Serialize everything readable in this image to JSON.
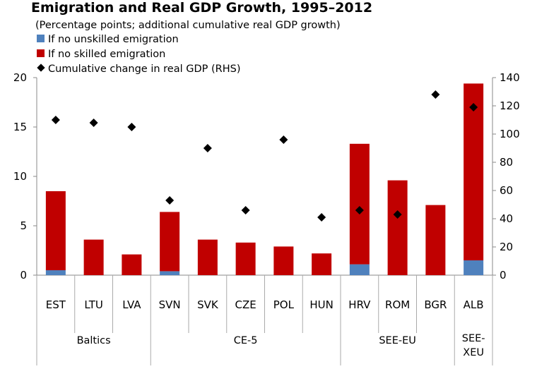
{
  "chart_data": {
    "type": "bar",
    "title": "Emigration and Real GDP Growth, 1995–2012",
    "subtitle": "(Percentage points; additional cumulative  real GDP growth)",
    "categories": [
      "EST",
      "LTU",
      "LVA",
      "SVN",
      "SVK",
      "CZE",
      "POL",
      "HUN",
      "HRV",
      "ROM",
      "BGR",
      "ALB"
    ],
    "groups": [
      {
        "label": "Baltics",
        "lines": [
          "Baltics"
        ],
        "start": 0,
        "end": 2
      },
      {
        "label": "CE-5",
        "lines": [
          "CE-5"
        ],
        "start": 3,
        "end": 7
      },
      {
        "label": "SEE-EU",
        "lines": [
          "SEE-EU"
        ],
        "start": 8,
        "end": 10
      },
      {
        "label": "SEE-XEU",
        "lines": [
          "SEE-",
          "XEU"
        ],
        "start": 11,
        "end": 11
      }
    ],
    "series": [
      {
        "name": "If no unskilled emigration",
        "kind": "bar",
        "axis": "left",
        "color": "#4F81BD",
        "values": [
          0.5,
          0.0,
          0.0,
          0.4,
          0.0,
          0.0,
          0.0,
          0.0,
          1.1,
          0.0,
          0.0,
          1.5
        ]
      },
      {
        "name": "If no skilled emigration",
        "kind": "bar",
        "axis": "left",
        "color": "#C00000",
        "values": [
          8.0,
          3.6,
          2.1,
          6.0,
          3.6,
          3.3,
          2.9,
          2.2,
          12.2,
          9.6,
          7.1,
          17.9
        ]
      },
      {
        "name": "Cumulative  change in real GDP (RHS)",
        "kind": "marker",
        "axis": "right",
        "color": "#000000",
        "values": [
          110,
          108,
          105,
          53,
          90,
          46,
          96,
          41,
          46,
          43,
          128,
          119
        ]
      }
    ],
    "ylim": [
      0,
      20
    ],
    "yticks": [
      0,
      5,
      10,
      15,
      20
    ],
    "y2lim": [
      0,
      140
    ],
    "y2ticks": [
      0,
      20,
      40,
      60,
      80,
      100,
      120,
      140
    ],
    "xlabel": "",
    "ylabel": "",
    "legend_position": "top-left"
  }
}
